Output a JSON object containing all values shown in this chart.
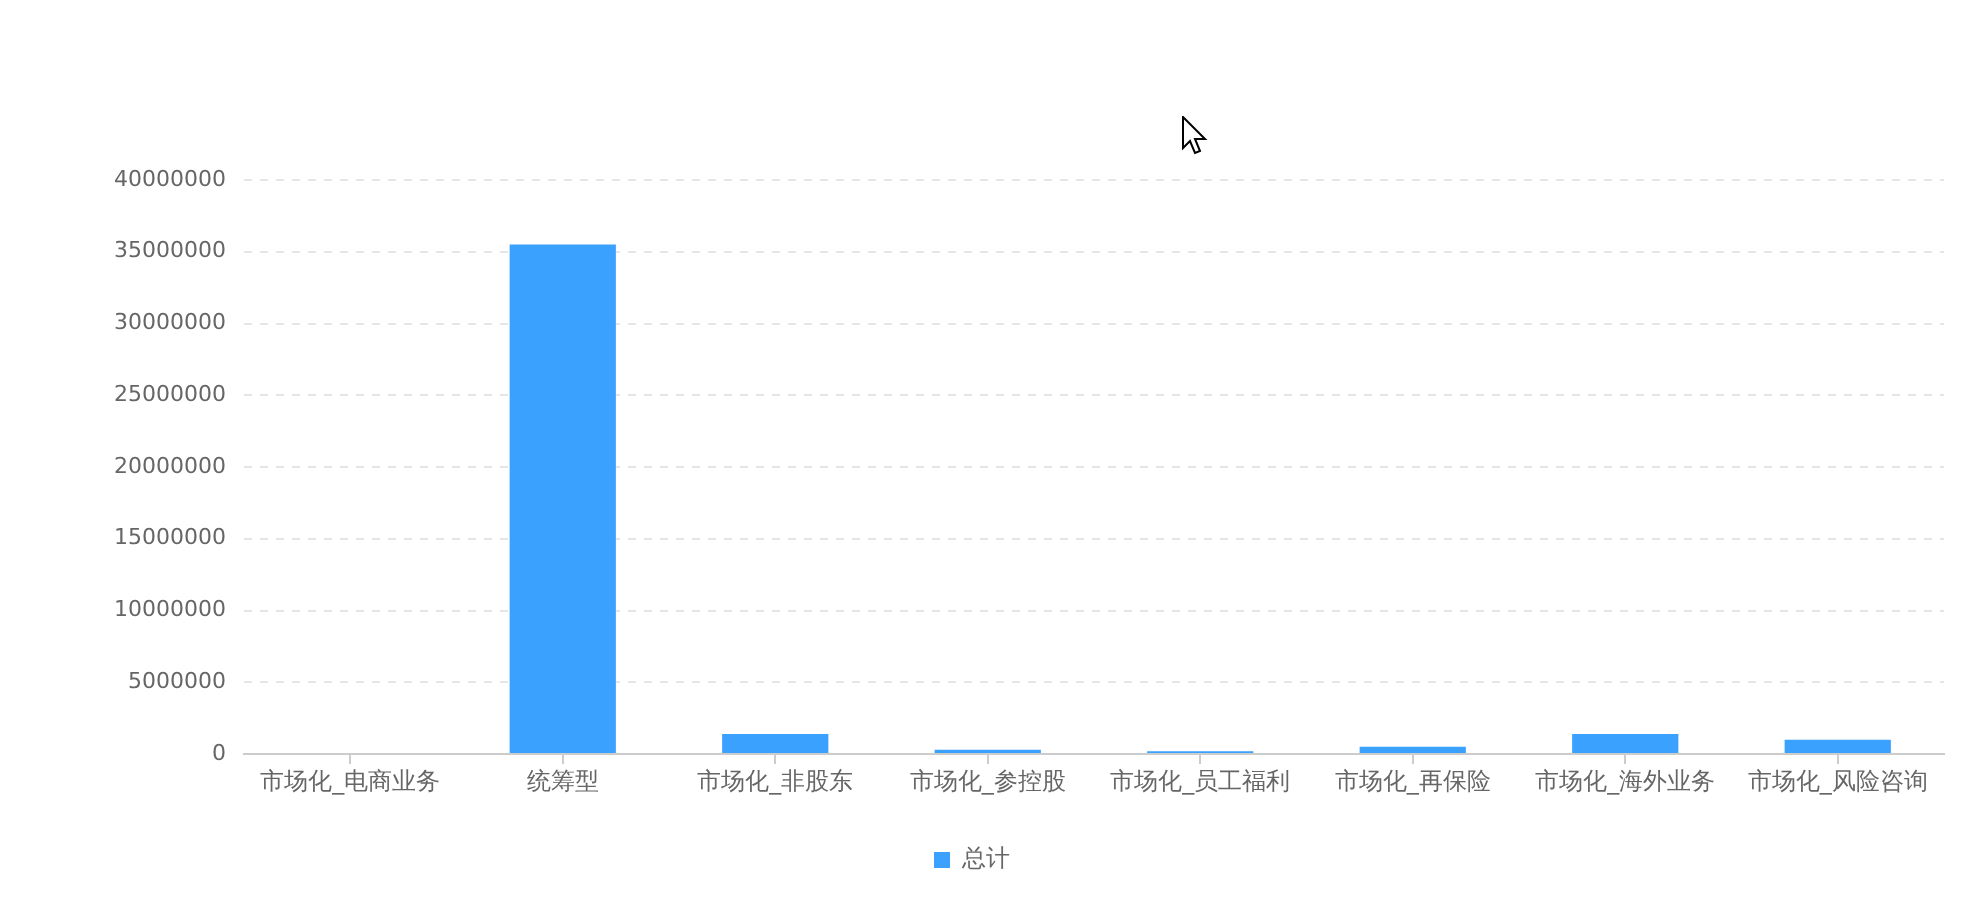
{
  "chart_data": {
    "type": "bar",
    "categories": [
      "市场化_电商业务",
      "统筹型",
      "市场化_非股东",
      "市场化_参控股",
      "市场化_员工福利",
      "市场化_再保险",
      "市场化_海外业务",
      "市场化_风险咨询"
    ],
    "series": [
      {
        "name": "总计",
        "color": "#3ba1ff",
        "values": [
          0,
          35500000,
          1400000,
          300000,
          200000,
          500000,
          1400000,
          1000000
        ]
      }
    ],
    "ylim": [
      0,
      40000000
    ],
    "yticks": [
      0,
      5000000,
      10000000,
      15000000,
      20000000,
      25000000,
      30000000,
      35000000,
      40000000
    ],
    "grid": "y",
    "legend": "bottom"
  }
}
